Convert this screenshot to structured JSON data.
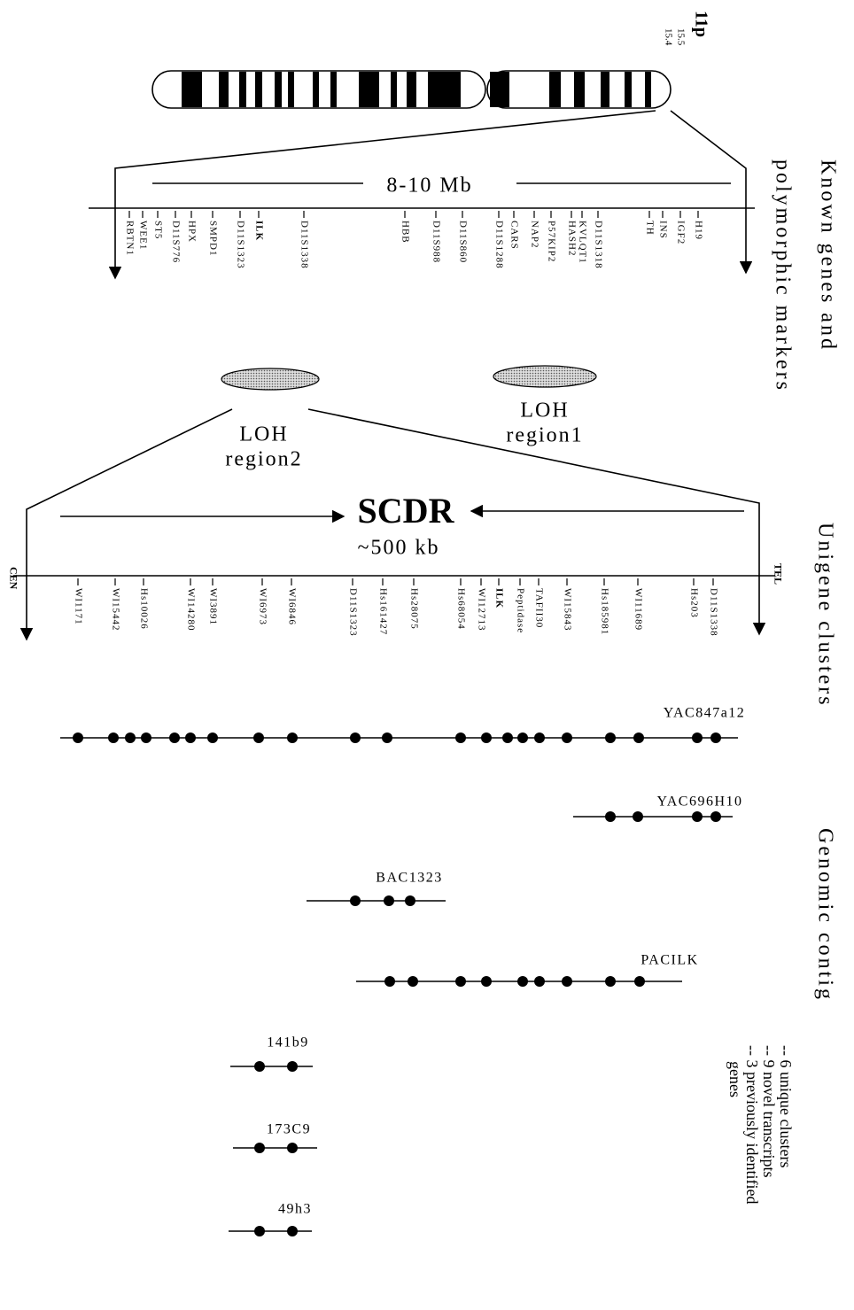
{
  "header": {
    "chromosome": "11p",
    "bands": [
      "15.5",
      "15.4"
    ]
  },
  "map1": {
    "title_lines": [
      "Known genes and",
      "polymorphic markers"
    ],
    "span": "8-10 Mb",
    "markers": [
      "RBTN1",
      "WEE1",
      "ST5",
      "D11S776",
      "HPX",
      "SMPD1",
      "D11S1323",
      "ILK",
      "D11S1338",
      "HBB",
      "D11S988",
      "D11S860",
      "D11S1288",
      "CARS",
      "NAP2",
      "P57KIP2",
      "HASH2",
      "KVLQT1",
      "D11S1318",
      "TH",
      "INS",
      "IGF2",
      "H19"
    ]
  },
  "loh": [
    {
      "lines": [
        "LOH",
        "region1"
      ]
    },
    {
      "lines": [
        "LOH",
        "region2"
      ]
    }
  ],
  "map2": {
    "title": "Unigene clusters",
    "region": "SCDR",
    "size": "~500 kb",
    "left_end": "CEN",
    "right_end": "TEL",
    "markers": [
      "WI1171",
      "WI15442",
      "Hs10026",
      "WI14280",
      "WI3891",
      "WI6973",
      "WI6846",
      "D11S1323",
      "Hs161427",
      "Hs28075",
      "Hs68054",
      "WI12713",
      "ILK",
      "Peptidase",
      "TAFII30",
      "WI15843",
      "Hs185981",
      "WI11689",
      "Hs203",
      "D11S1338"
    ]
  },
  "contig": {
    "title": "Genomic contig",
    "clones": [
      "YAC847a12",
      "YAC696H10",
      "BAC1323",
      "PACILK",
      "141b9",
      "173C9",
      "49h3"
    ]
  },
  "summary": [
    [
      "-- 6 unique clusters"
    ],
    [
      "-- 9 novel transcripts"
    ],
    [
      "-- 3 previously identified",
      "genes"
    ]
  ]
}
